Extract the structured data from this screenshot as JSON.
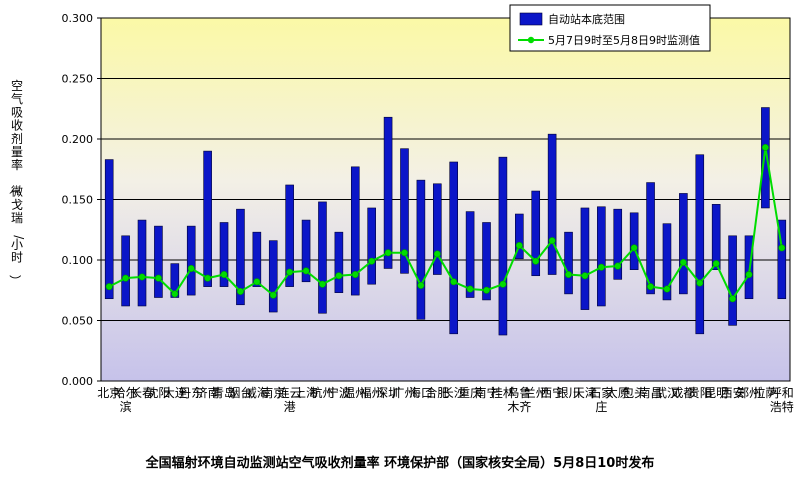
{
  "caption": "全国辐射环境自动监测站空气吸收剂量率 环境保护部（国家核安全局）5月8日10时发布",
  "chart_data": {
    "type": "bar",
    "title": "",
    "ylabel": "空气吸收剂量率（微戈瑞/小时）",
    "ylim": [
      0,
      0.3
    ],
    "yticks": [
      "0.000",
      "0.050",
      "0.100",
      "0.150",
      "0.200",
      "0.250",
      "0.300"
    ],
    "grid": true,
    "legend_position": "top-right",
    "categories": [
      "北京",
      "哈尔滨",
      "长春",
      "沈阳",
      "大连",
      "丹东",
      "济南",
      "青岛",
      "烟台",
      "威海",
      "南京",
      "连云港",
      "上海",
      "杭州",
      "宁波",
      "温州",
      "福州",
      "深圳",
      "广州",
      "海口",
      "合肥",
      "长沙",
      "重庆",
      "南宁",
      "桂林",
      "乌鲁木齐",
      "兰州",
      "西宁",
      "银川",
      "天津",
      "石家庄",
      "太原",
      "包头",
      "南昌",
      "武汉",
      "成都",
      "贵阳",
      "昆明",
      "西安",
      "郑州",
      "拉萨",
      "呼和浩特"
    ],
    "series": [
      {
        "name": "自动站本底范围",
        "kind": "range-bar",
        "color": "#0b16c8",
        "low": [
          0.068,
          0.062,
          0.062,
          0.069,
          0.069,
          0.071,
          0.078,
          0.078,
          0.063,
          0.078,
          0.057,
          0.078,
          0.082,
          0.056,
          0.073,
          0.071,
          0.08,
          0.093,
          0.089,
          0.051,
          0.088,
          0.039,
          0.069,
          0.067,
          0.038,
          0.101,
          0.087,
          0.088,
          0.072,
          0.059,
          0.062,
          0.084,
          0.092,
          0.072,
          0.067,
          0.072,
          0.039,
          0.092,
          0.046,
          0.068,
          0.143,
          0.068
        ],
        "high": [
          0.183,
          0.12,
          0.133,
          0.128,
          0.097,
          0.128,
          0.19,
          0.131,
          0.142,
          0.123,
          0.116,
          0.162,
          0.133,
          0.148,
          0.123,
          0.177,
          0.143,
          0.218,
          0.192,
          0.166,
          0.163,
          0.181,
          0.14,
          0.131,
          0.185,
          0.138,
          0.157,
          0.204,
          0.123,
          0.143,
          0.144,
          0.142,
          0.139,
          0.164,
          0.13,
          0.155,
          0.187,
          0.146,
          0.12,
          0.12,
          0.226,
          0.133
        ]
      },
      {
        "name": "5月7日9时至5月8日9时监测值",
        "kind": "line",
        "color": "#00dd00",
        "values": [
          0.078,
          0.085,
          0.086,
          0.085,
          0.072,
          0.093,
          0.085,
          0.088,
          0.074,
          0.082,
          0.071,
          0.09,
          0.091,
          0.08,
          0.087,
          0.088,
          0.099,
          0.106,
          0.106,
          0.079,
          0.105,
          0.082,
          0.076,
          0.075,
          0.08,
          0.112,
          0.099,
          0.116,
          0.088,
          0.087,
          0.094,
          0.095,
          0.11,
          0.078,
          0.076,
          0.098,
          0.081,
          0.097,
          0.068,
          0.088,
          0.193,
          0.11
        ]
      }
    ]
  }
}
